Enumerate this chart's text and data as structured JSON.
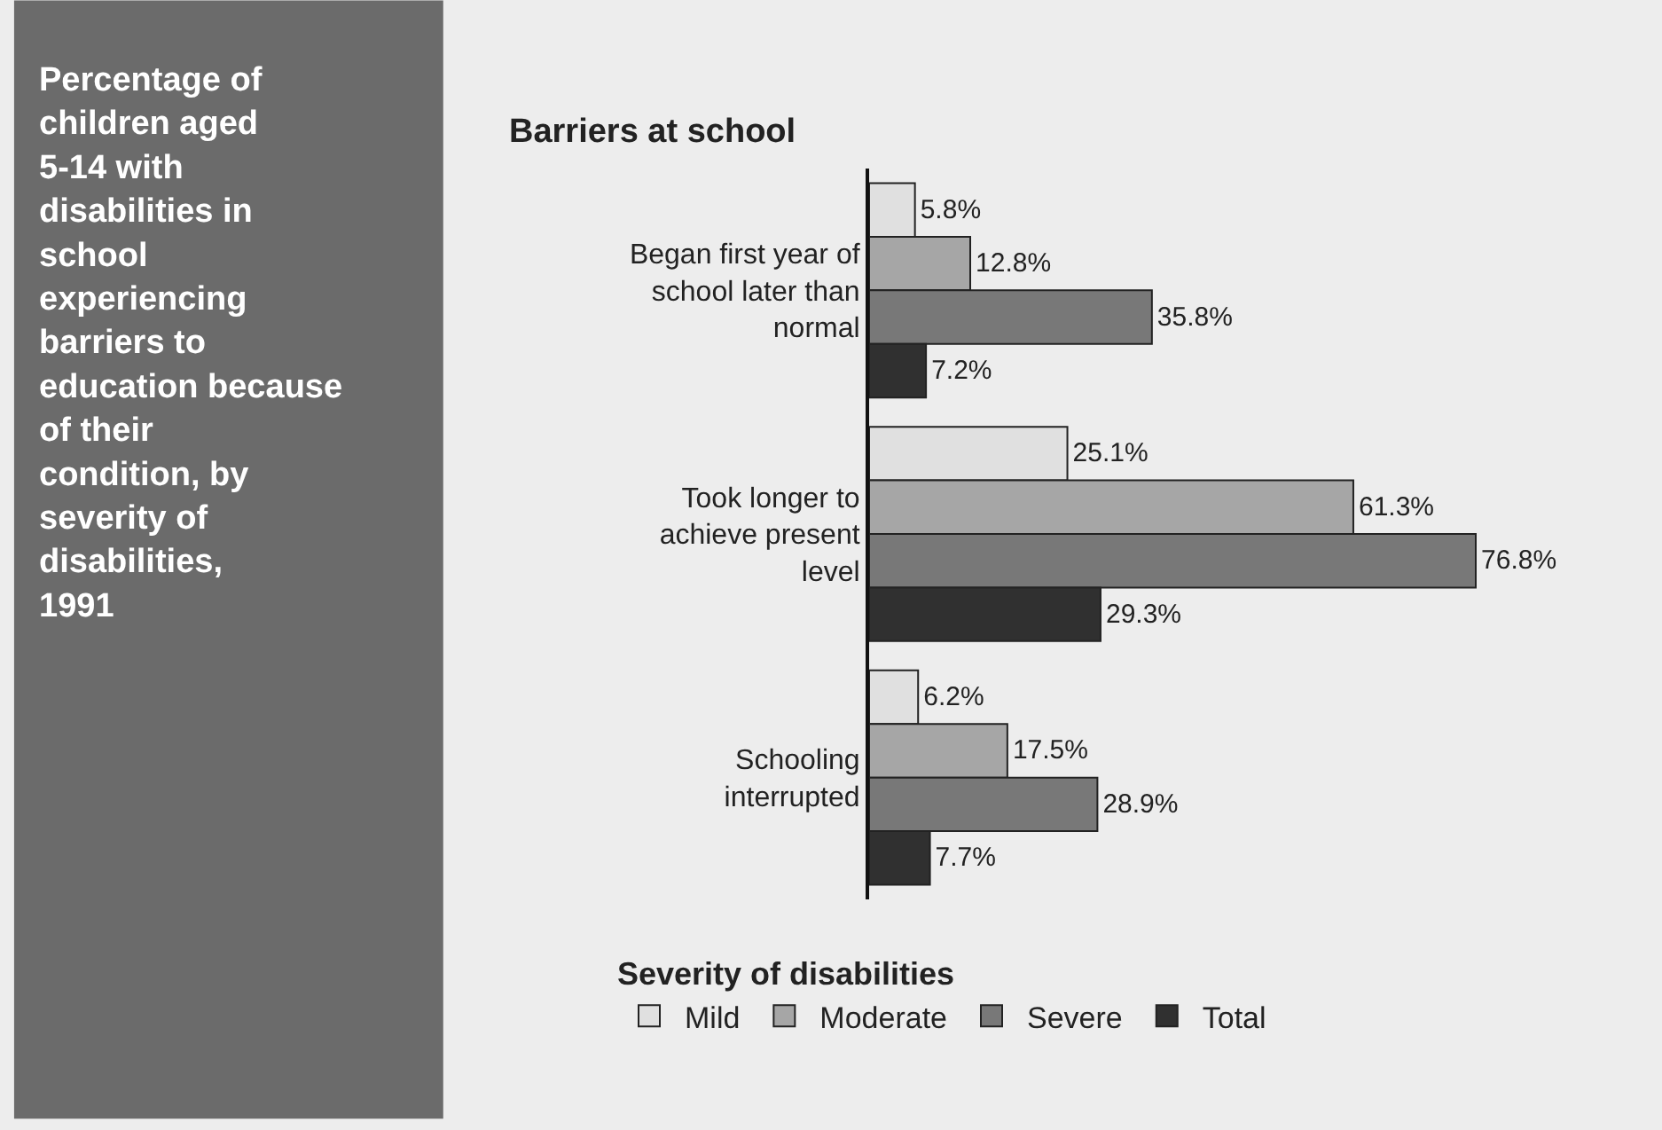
{
  "chart_data": {
    "type": "bar",
    "orientation": "horizontal",
    "title": "Percentage of children aged 5-14 with disabilities in school experiencing barriers to education because of their condition, by severity of disabilities, 1991",
    "subtitle": "Barriers at school",
    "legend_title": "Severity of disabilities",
    "categories": [
      "Began first year of school later than normal",
      "Took longer to achieve present level",
      "Schooling interrupted"
    ],
    "series": [
      {
        "name": "Mild",
        "color": "#e0e0e0",
        "values": [
          5.8,
          25.1,
          6.2
        ],
        "value_labels": [
          "5.8%",
          "25.1%",
          "6.2%"
        ]
      },
      {
        "name": "Moderate",
        "color": "#a6a6a6",
        "values": [
          12.8,
          61.3,
          17.5
        ],
        "value_labels": [
          "12.8%",
          "61.3%",
          "17.5%"
        ]
      },
      {
        "name": "Severe",
        "color": "#787878",
        "values": [
          35.8,
          76.8,
          28.9
        ],
        "value_labels": [
          "35.8%",
          "76.8%",
          "28.9%"
        ]
      },
      {
        "name": "Total",
        "color": "#303030",
        "values": [
          7.2,
          29.3,
          7.7
        ],
        "value_labels": [
          "7.2%",
          "29.3%",
          "7.7%"
        ]
      }
    ],
    "tick_labels": "y",
    "grid": false,
    "legend": "bottom"
  }
}
